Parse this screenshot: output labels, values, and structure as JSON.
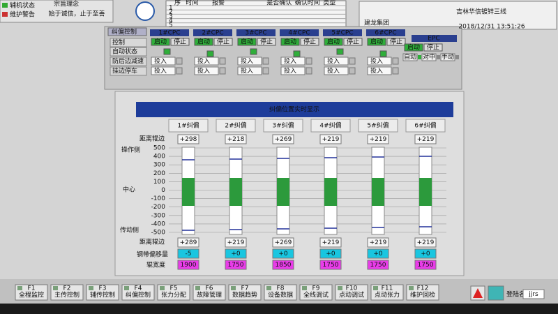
{
  "header": {
    "status_labels": [
      "辅机状态",
      "维护警告"
    ],
    "motto_title": "宗旨理念",
    "motto": "始于诚信，止于至善",
    "alarm_columns": [
      "序",
      "时间",
      "报警",
      "是否确认",
      "确认时间",
      "类型"
    ],
    "alarm_rows": [
      "1",
      "2",
      "3",
      "4",
      "5"
    ],
    "logo": "建龙集团",
    "title": "吉林华信镀锌三线",
    "datetime": "2018/12/31  13:51:26"
  },
  "control": {
    "title": "纠偏控制",
    "units": [
      "1#CPC",
      "2#CPC",
      "3#CPC",
      "4#CPC",
      "5#CPC",
      "6#CPC"
    ],
    "epc": "EPC",
    "row_labels": [
      "控制",
      "自动状态",
      "防后边减速",
      "挂边停车"
    ],
    "start": "启动",
    "stop": "停止",
    "enable": "投入",
    "epc_modes": [
      "自动",
      "对中",
      "手动"
    ]
  },
  "monitor": {
    "title": "纠偏位置实时显示",
    "units": [
      "1#纠偏",
      "2#纠偏",
      "3#纠偏",
      "4#纠偏",
      "5#纠偏",
      "6#纠偏"
    ],
    "labels": {
      "top_distance": "距离辊边",
      "operator_side": "操作侧",
      "center": "中心",
      "drive_side": "传动侧",
      "bottom_distance": "距离辊边",
      "offset": "钢带偏移量",
      "width": "辊宽度"
    },
    "yticks": [
      500,
      400,
      300,
      200,
      100,
      0,
      -100,
      -200,
      -300,
      -400,
      -500
    ],
    "top_distance": [
      "+298",
      "+218",
      "+269",
      "+219",
      "+219",
      "+219"
    ],
    "bottom_distance": [
      "+289",
      "+219",
      "+269",
      "+219",
      "+219",
      "+219"
    ],
    "offset": [
      "-5",
      "+0",
      "+0",
      "+0",
      "+0",
      "+0"
    ],
    "width": [
      "1900",
      "1750",
      "1850",
      "1750",
      "1750",
      "1750"
    ]
  },
  "footer": {
    "keys": [
      {
        "key": "F1",
        "label": "全程监控"
      },
      {
        "key": "F2",
        "label": "主传控制"
      },
      {
        "key": "F3",
        "label": "辅传控制"
      },
      {
        "key": "F4",
        "label": "纠偏控制"
      },
      {
        "key": "F5",
        "label": "张力分配"
      },
      {
        "key": "F6",
        "label": "故障管理"
      },
      {
        "key": "F7",
        "label": "数据趋势"
      },
      {
        "key": "F8",
        "label": "设备数据"
      },
      {
        "key": "F9",
        "label": "全线调试"
      },
      {
        "key": "F10",
        "label": "点动调试"
      },
      {
        "key": "F11",
        "label": "点动张力"
      },
      {
        "key": "F12",
        "label": "维护回检"
      }
    ],
    "login_label": "登陆名",
    "login_user": "jjrs"
  }
}
